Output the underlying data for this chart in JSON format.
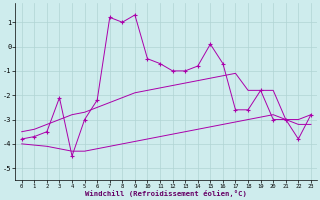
{
  "xlabel": "Windchill (Refroidissement éolien,°C)",
  "background_color": "#ceeced",
  "grid_color": "#b0d4d4",
  "line_color": "#aa00aa",
  "x": [
    0,
    1,
    2,
    3,
    4,
    5,
    6,
    7,
    8,
    9,
    10,
    11,
    12,
    13,
    14,
    15,
    16,
    17,
    18,
    19,
    20,
    21,
    22,
    23
  ],
  "y_main": [
    -3.8,
    -3.7,
    -3.5,
    -2.1,
    -4.5,
    -3.0,
    -2.2,
    1.2,
    1.0,
    1.3,
    -0.5,
    -0.7,
    -1.0,
    -1.0,
    -0.8,
    0.1,
    -0.7,
    -2.6,
    -2.6,
    -1.8,
    -3.0,
    -3.0,
    -3.8,
    -2.8
  ],
  "y_upper": [
    -3.5,
    -3.4,
    -3.2,
    -3.0,
    -2.8,
    -2.7,
    -2.5,
    -2.3,
    -2.1,
    -1.9,
    -1.8,
    -1.7,
    -1.6,
    -1.5,
    -1.4,
    -1.3,
    -1.2,
    -1.1,
    -1.8,
    -1.8,
    -1.8,
    -3.0,
    -3.0,
    -2.8
  ],
  "y_lower": [
    -4.0,
    -4.05,
    -4.1,
    -4.2,
    -4.3,
    -4.3,
    -4.2,
    -4.1,
    -4.0,
    -3.9,
    -3.8,
    -3.7,
    -3.6,
    -3.5,
    -3.4,
    -3.3,
    -3.2,
    -3.1,
    -3.0,
    -2.9,
    -2.8,
    -3.0,
    -3.2,
    -3.2
  ],
  "ylim": [
    -5.5,
    1.8
  ],
  "xlim": [
    -0.5,
    23.5
  ],
  "yticks": [
    -5,
    -4,
    -3,
    -2,
    -1,
    0,
    1
  ],
  "xticks": [
    0,
    1,
    2,
    3,
    4,
    5,
    6,
    7,
    8,
    9,
    10,
    11,
    12,
    13,
    14,
    15,
    16,
    17,
    18,
    19,
    20,
    21,
    22,
    23
  ]
}
